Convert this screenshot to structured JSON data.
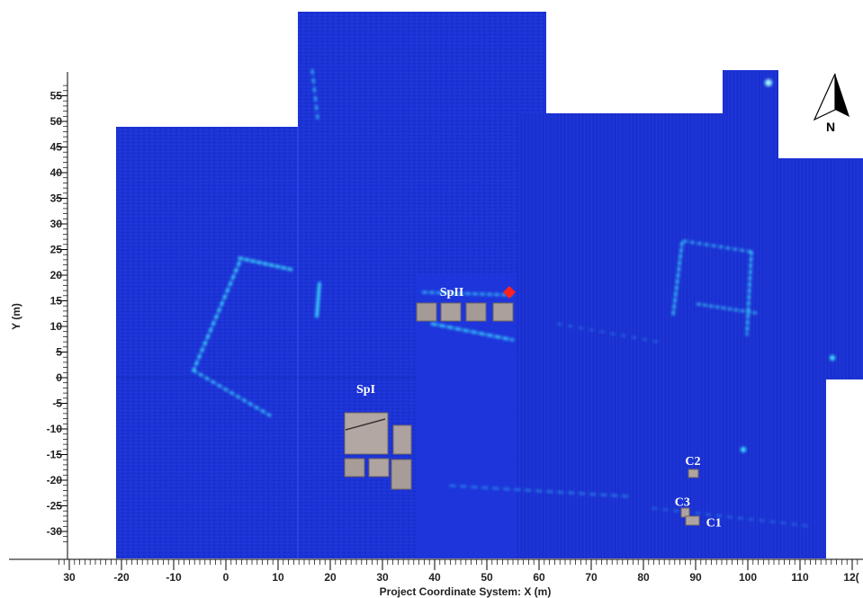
{
  "map": {
    "x_axis": {
      "title": "Project Coordinate System: X (m)",
      "ticks": [
        "30",
        "-20",
        "-10",
        "0",
        "10",
        "20",
        "30",
        "40",
        "50",
        "60",
        "70",
        "80",
        "90",
        "100",
        "110",
        "12("
      ]
    },
    "y_axis": {
      "title": "Y (m)",
      "ticks": [
        "55",
        "50",
        "45",
        "40",
        "35",
        "30",
        "25",
        "20",
        "15",
        "10",
        "5",
        "0",
        "-5",
        "-10",
        "-15",
        "-20",
        "-25",
        "-30"
      ]
    },
    "sites": [
      {
        "label": "SpII",
        "x": 41,
        "y": 16
      },
      {
        "label": "SpI",
        "x": 25,
        "y": -3
      },
      {
        "label": "C2",
        "x": 88,
        "y": -17
      },
      {
        "label": "C3",
        "x": 86,
        "y": -25
      },
      {
        "label": "C1",
        "x": 92,
        "y": -29
      }
    ],
    "north_arrow": {
      "label": "N",
      "icon": "north-arrow-icon"
    },
    "marker": {
      "icon": "red-diamond-marker-icon",
      "color": "#ff2020",
      "x": 54.5,
      "y": 13.5
    },
    "colors": {
      "background": "#1a2fd0",
      "dark": "#1428b8",
      "anomaly": "#3ff0ff"
    }
  }
}
